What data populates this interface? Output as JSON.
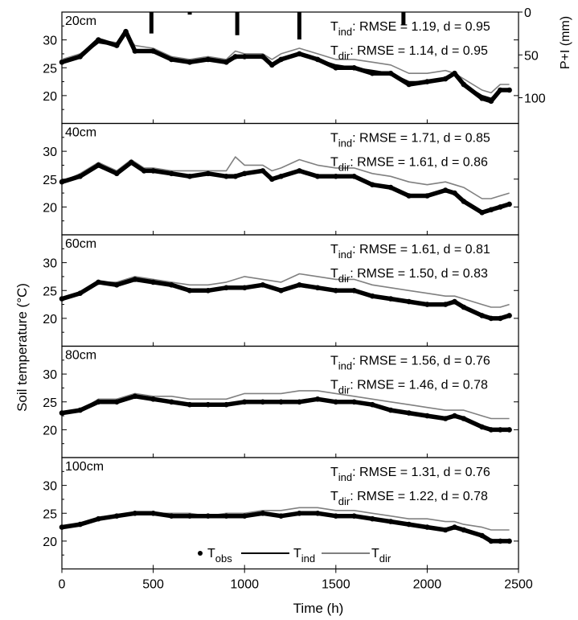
{
  "chart_data": {
    "type": "line",
    "xlabel": "Time (h)",
    "ylabel": "Soil temperature (°C)",
    "xlim": [
      0,
      2500
    ],
    "x_ticks": [
      0,
      500,
      1000,
      1500,
      2000,
      2500
    ],
    "ylim": [
      15,
      35
    ],
    "y_ticks": [
      20,
      25,
      30
    ],
    "legend": {
      "position": "bottom-center",
      "entries": [
        {
          "key": "obs",
          "prefix": "T",
          "sub": "obs",
          "marker": "dot",
          "color": "#000000"
        },
        {
          "key": "ind",
          "prefix": "T",
          "sub": "ind",
          "marker": "line",
          "color": "#000000"
        },
        {
          "key": "dir",
          "prefix": "T",
          "sub": "dir",
          "marker": "line",
          "color": "#808080"
        }
      ]
    },
    "secondary_axis": {
      "panel": 0,
      "label": "P+I (mm)",
      "ticks": [
        0,
        50,
        100
      ],
      "range": [
        0,
        130
      ],
      "inverted": true,
      "events": [
        {
          "x": 490,
          "value": 25
        },
        {
          "x": 700,
          "value": 3
        },
        {
          "x": 960,
          "value": 27
        },
        {
          "x": 1300,
          "value": 32
        },
        {
          "x": 1870,
          "value": 15
        }
      ]
    },
    "panels": [
      {
        "depth": "20cm",
        "stats": [
          {
            "prefix": "T",
            "sub": "ind",
            "text": ": RMSE = 1.19, d = 0.95"
          },
          {
            "prefix": "T",
            "sub": "dir",
            "text": ": RMSE = 1.14, d = 0.95"
          }
        ],
        "x": [
          0,
          100,
          200,
          300,
          350,
          400,
          500,
          600,
          700,
          800,
          900,
          950,
          1000,
          1100,
          1150,
          1200,
          1300,
          1400,
          1500,
          1600,
          1700,
          1800,
          1900,
          2000,
          2100,
          2150,
          2200,
          2300,
          2350,
          2400,
          2450
        ],
        "series": [
          {
            "key": "obs",
            "values": [
              26,
              27,
              30,
              29,
              31.5,
              28,
              28,
              26.5,
              26,
              26.5,
              26,
              27,
              27,
              27,
              25.5,
              26.5,
              27.5,
              26.5,
              25,
              25,
              24,
              24,
              22,
              22.5,
              23,
              24,
              22,
              19.5,
              19,
              21,
              21
            ]
          },
          {
            "key": "ind",
            "values": [
              26,
              27,
              29.5,
              29,
              31,
              28,
              28,
              26.5,
              26,
              26.5,
              26,
              27,
              27,
              27,
              25.5,
              26.5,
              27.5,
              26.5,
              25.5,
              25,
              24.5,
              24,
              22.5,
              22.5,
              23,
              24,
              22,
              20,
              19.5,
              21,
              21
            ]
          },
          {
            "key": "dir",
            "values": [
              26.5,
              27.5,
              30,
              29.5,
              31,
              29,
              28.5,
              27,
              26.5,
              27,
              26.5,
              28,
              27.5,
              27.5,
              26.5,
              27.5,
              28.5,
              27.5,
              26.5,
              26.5,
              26,
              25.5,
              24,
              24,
              24.5,
              24,
              23,
              21,
              20.5,
              22,
              22
            ]
          }
        ]
      },
      {
        "depth": "40cm",
        "stats": [
          {
            "prefix": "T",
            "sub": "ind",
            "text": ": RMSE = 1.71, d = 0.85"
          },
          {
            "prefix": "T",
            "sub": "dir",
            "text": ": RMSE = 1.61, d = 0.86"
          }
        ],
        "x": [
          0,
          100,
          200,
          300,
          380,
          450,
          500,
          600,
          700,
          800,
          900,
          950,
          1000,
          1100,
          1150,
          1200,
          1300,
          1400,
          1500,
          1600,
          1700,
          1800,
          1900,
          2000,
          2100,
          2150,
          2200,
          2300,
          2350,
          2400,
          2450
        ],
        "series": [
          {
            "key": "obs",
            "values": [
              24.5,
              25.5,
              27.5,
              26,
              28,
              26.5,
              26.5,
              26,
              25.5,
              26,
              25.5,
              25.5,
              26,
              26.5,
              25,
              25.5,
              26.5,
              25.5,
              25.5,
              25.5,
              24,
              23.5,
              22,
              22,
              23,
              22.5,
              21,
              19,
              19.5,
              20,
              20.5
            ]
          },
          {
            "key": "ind",
            "values": [
              24.5,
              25.5,
              27.5,
              26,
              28,
              26.5,
              26.5,
              26,
              25.5,
              26,
              25.5,
              25.5,
              26,
              26.5,
              25,
              25.5,
              26.5,
              25.5,
              25.5,
              25.5,
              24,
              23.5,
              22,
              22,
              23,
              22.5,
              21,
              19,
              19.5,
              20,
              20.5
            ]
          },
          {
            "key": "dir",
            "values": [
              24.5,
              26,
              28,
              26.5,
              28.5,
              27,
              27,
              26.5,
              26.5,
              26.5,
              26.5,
              29,
              27.5,
              27.5,
              26.5,
              27,
              28.5,
              27.5,
              27,
              27,
              26,
              25.5,
              24.5,
              24,
              24.5,
              24,
              23.5,
              21.5,
              21.5,
              22,
              22.5
            ]
          }
        ]
      },
      {
        "depth": "60cm",
        "stats": [
          {
            "prefix": "T",
            "sub": "ind",
            "text": ": RMSE = 1.61, d = 0.81"
          },
          {
            "prefix": "T",
            "sub": "dir",
            "text": ": RMSE = 1.50, d = 0.83"
          }
        ],
        "x": [
          0,
          100,
          200,
          300,
          400,
          500,
          600,
          700,
          800,
          900,
          1000,
          1100,
          1200,
          1300,
          1400,
          1500,
          1600,
          1700,
          1800,
          1900,
          2000,
          2100,
          2150,
          2200,
          2300,
          2350,
          2400,
          2450
        ],
        "series": [
          {
            "key": "obs",
            "values": [
              23.5,
              24.5,
              26.5,
              26,
              27,
              26.5,
              26,
              25,
              25,
              25.5,
              25.5,
              26,
              25,
              26,
              25.5,
              25,
              25,
              24,
              23.5,
              23,
              22.5,
              22.5,
              23,
              22,
              20.5,
              20,
              20,
              20.5
            ]
          },
          {
            "key": "ind",
            "values": [
              23.5,
              24.5,
              26.5,
              26,
              27,
              26.5,
              26,
              25,
              25,
              25.5,
              25.5,
              26,
              25,
              26,
              25.5,
              25,
              25,
              24,
              23.5,
              23,
              22.5,
              22.5,
              23,
              22,
              20.5,
              20,
              20,
              20.5
            ]
          },
          {
            "key": "dir",
            "values": [
              23.5,
              24.5,
              26.5,
              26.5,
              27.5,
              27,
              26.5,
              26,
              26,
              26.5,
              27.5,
              27,
              26.5,
              28,
              27.5,
              27,
              27,
              26,
              25.5,
              25,
              24.5,
              24,
              24,
              23.5,
              22.5,
              22,
              22,
              22.5
            ]
          }
        ]
      },
      {
        "depth": "80cm",
        "stats": [
          {
            "prefix": "T",
            "sub": "ind",
            "text": ": RMSE = 1.56, d = 0.76"
          },
          {
            "prefix": "T",
            "sub": "dir",
            "text": ": RMSE = 1.46, d = 0.78"
          }
        ],
        "x": [
          0,
          100,
          200,
          300,
          400,
          500,
          600,
          700,
          800,
          900,
          1000,
          1100,
          1200,
          1300,
          1400,
          1500,
          1600,
          1700,
          1800,
          1900,
          2000,
          2100,
          2150,
          2200,
          2300,
          2350,
          2400,
          2450
        ],
        "series": [
          {
            "key": "obs",
            "values": [
              23,
              23.5,
              25,
              25,
              26,
              25.5,
              25,
              24.5,
              24.5,
              24.5,
              25,
              25,
              25,
              25,
              25.5,
              25,
              25,
              24.5,
              23.5,
              23,
              22.5,
              22,
              22.5,
              22,
              20.5,
              20,
              20,
              20
            ]
          },
          {
            "key": "ind",
            "values": [
              23,
              23.5,
              25,
              25,
              26,
              25.5,
              25,
              24.5,
              24.5,
              24.5,
              25,
              25,
              25,
              25,
              25.5,
              25,
              25,
              24.5,
              23.5,
              23,
              22.5,
              22,
              22.5,
              22,
              20.5,
              20,
              20,
              20
            ]
          },
          {
            "key": "dir",
            "values": [
              23,
              23.5,
              25.5,
              25.5,
              26.5,
              26,
              26,
              25.5,
              25.5,
              25.5,
              26.5,
              26.5,
              26.5,
              27,
              27,
              26.5,
              26,
              25.5,
              25,
              24.5,
              24,
              23.5,
              23.5,
              23.5,
              22.5,
              22,
              22,
              22
            ]
          }
        ]
      },
      {
        "depth": "100cm",
        "stats": [
          {
            "prefix": "T",
            "sub": "ind",
            "text": ": RMSE = 1.31, d = 0.76"
          },
          {
            "prefix": "T",
            "sub": "dir",
            "text": ": RMSE = 1.22, d = 0.78"
          }
        ],
        "x": [
          0,
          100,
          200,
          300,
          400,
          500,
          600,
          700,
          800,
          900,
          1000,
          1100,
          1200,
          1300,
          1400,
          1500,
          1600,
          1700,
          1800,
          1900,
          2000,
          2100,
          2150,
          2200,
          2300,
          2350,
          2400,
          2450
        ],
        "series": [
          {
            "key": "obs",
            "values": [
              22.5,
              23,
              24,
              24.5,
              25,
              25,
              24.5,
              24.5,
              24.5,
              24.5,
              24.5,
              25,
              24.5,
              25,
              25,
              24.5,
              24.5,
              24,
              23.5,
              23,
              22.5,
              22,
              22.5,
              22,
              21,
              20,
              20,
              20
            ]
          },
          {
            "key": "ind",
            "values": [
              22.5,
              23,
              24,
              24.5,
              25,
              25,
              24.5,
              24.5,
              24.5,
              24.5,
              24.5,
              25,
              24.5,
              25,
              25,
              24.5,
              24.5,
              24,
              23.5,
              23,
              22.5,
              22,
              22.5,
              22,
              21,
              20,
              20,
              20
            ]
          },
          {
            "key": "dir",
            "values": [
              22.5,
              23,
              24,
              24.5,
              25,
              25,
              25,
              25,
              24.5,
              25,
              25,
              25.5,
              25.5,
              26,
              26,
              25.5,
              25.5,
              25,
              24.5,
              24,
              24,
              23.5,
              23.5,
              23,
              22.5,
              22,
              22,
              22
            ]
          }
        ]
      }
    ]
  }
}
